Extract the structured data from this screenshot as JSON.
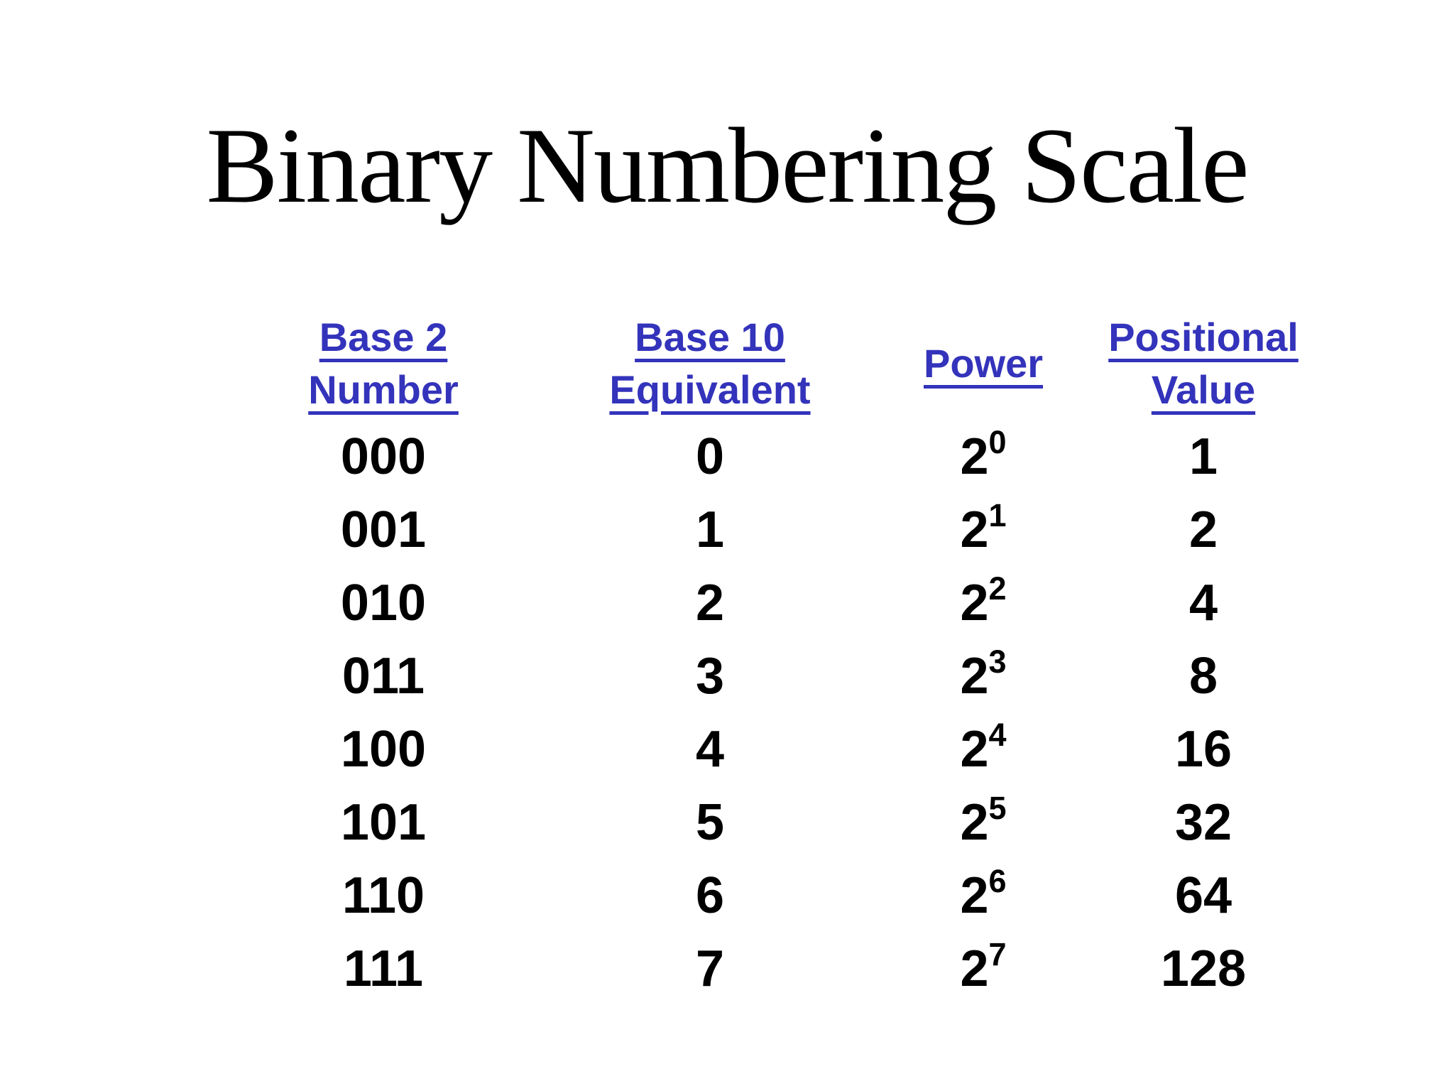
{
  "slide": {
    "title": "Binary Numbering Scale",
    "colors": {
      "header_text": "#3333bb",
      "body_text": "#000000",
      "background": "#ffffff"
    },
    "table": {
      "headers": [
        {
          "label": "Base 2\nNumber"
        },
        {
          "label": "Base 10\nEquivalent"
        },
        {
          "label": "Power"
        },
        {
          "label": "Positional\nValue"
        }
      ],
      "rows": [
        {
          "base2": "000",
          "base10": "0",
          "power_base": "2",
          "power_exp": "0",
          "positional": "1"
        },
        {
          "base2": "001",
          "base10": "1",
          "power_base": "2",
          "power_exp": "1",
          "positional": "2"
        },
        {
          "base2": "010",
          "base10": "2",
          "power_base": "2",
          "power_exp": "2",
          "positional": "4"
        },
        {
          "base2": "011",
          "base10": "3",
          "power_base": "2",
          "power_exp": "3",
          "positional": "8"
        },
        {
          "base2": "100",
          "base10": "4",
          "power_base": "2",
          "power_exp": "4",
          "positional": "16"
        },
        {
          "base2": "101",
          "base10": "5",
          "power_base": "2",
          "power_exp": "5",
          "positional": "32"
        },
        {
          "base2": "110",
          "base10": "6",
          "power_base": "2",
          "power_exp": "6",
          "positional": "64"
        },
        {
          "base2": "111",
          "base10": "7",
          "power_base": "2",
          "power_exp": "7",
          "positional": "128"
        }
      ]
    }
  }
}
